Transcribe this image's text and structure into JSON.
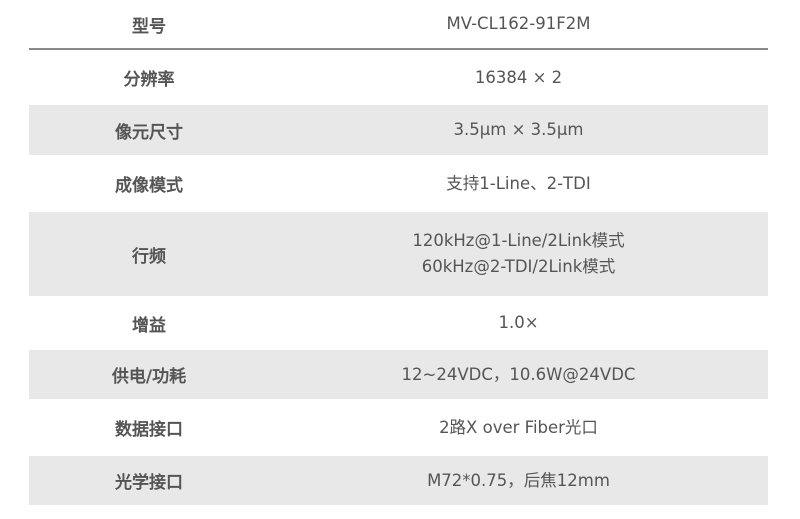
{
  "header": {
    "key": "型号",
    "value": "MV-CL162-91F2M"
  },
  "rows": [
    {
      "key": "分辨率",
      "lines": [
        "16384 × 2"
      ]
    },
    {
      "key": "像元尺寸",
      "lines": [
        "3.5μm × 3.5μm"
      ]
    },
    {
      "key": "成像模式",
      "lines": [
        "支持1-Line、2-TDI"
      ]
    },
    {
      "key": "行频",
      "lines": [
        "120kHz@1-Line/2Link模式",
        "60kHz@2-TDI/2Link模式"
      ]
    },
    {
      "key": "增益",
      "lines": [
        "1.0×"
      ]
    },
    {
      "key": "供电/功耗",
      "lines": [
        "12~24VDC，10.6W@24VDC"
      ]
    },
    {
      "key": "数据接口",
      "lines": [
        "2路X over Fiber光口"
      ]
    },
    {
      "key": "光学接口",
      "lines": [
        "M72*0.75，后焦12mm"
      ]
    }
  ],
  "colors": {
    "stripe": "#e8e8e8",
    "text": "#555555",
    "rule": "#8a8a8a"
  }
}
